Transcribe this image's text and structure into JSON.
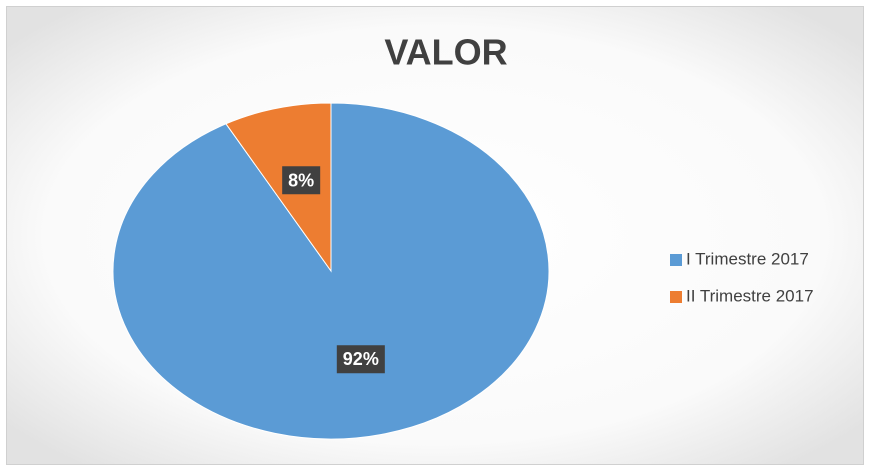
{
  "chart_data": {
    "type": "pie",
    "title": "VALOR",
    "categories": [
      "I Trimestre 2017",
      "II Trimestre 2017"
    ],
    "values": [
      92,
      8
    ],
    "value_labels": [
      "92%",
      "8%"
    ],
    "colors": [
      "#5b9bd5",
      "#ed7d31"
    ],
    "legend": "right"
  }
}
